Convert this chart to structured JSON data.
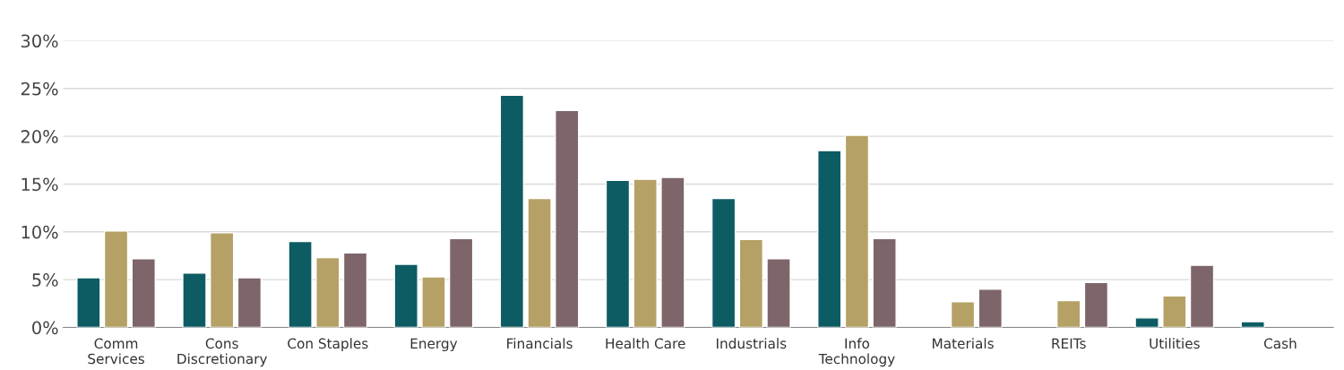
{
  "chart_data": {
    "type": "bar",
    "categories": [
      "Comm\nServices",
      "Cons\nDiscretionary",
      "Con Staples",
      "Energy",
      "Financials",
      "Health Care",
      "Industrials",
      "Info\nTechnology",
      "Materials",
      "REITs",
      "Utilities",
      "Cash"
    ],
    "series": [
      {
        "color": "#0d5c63",
        "values": [
          5.2,
          5.7,
          9.0,
          6.6,
          24.3,
          15.4,
          13.5,
          18.5,
          null,
          null,
          1.0,
          0.6
        ]
      },
      {
        "color": "#b5a165",
        "values": [
          10.1,
          9.9,
          7.3,
          5.3,
          13.5,
          15.5,
          9.2,
          20.1,
          2.7,
          2.8,
          3.3,
          null
        ]
      },
      {
        "color": "#7d6569",
        "values": [
          7.2,
          5.2,
          7.8,
          9.3,
          22.7,
          15.7,
          7.2,
          9.3,
          4.0,
          4.7,
          6.5,
          null
        ]
      }
    ],
    "ylim": [
      0,
      30
    ],
    "yticks": [
      {
        "value": 0,
        "label": "0%"
      },
      {
        "value": 5,
        "label": "5%"
      },
      {
        "value": 10,
        "label": "10%"
      },
      {
        "value": 15,
        "label": "15%"
      },
      {
        "value": 20,
        "label": "20%"
      },
      {
        "value": 25,
        "label": "25%"
      },
      {
        "value": 30,
        "label": "30%"
      }
    ],
    "grid": "y"
  }
}
